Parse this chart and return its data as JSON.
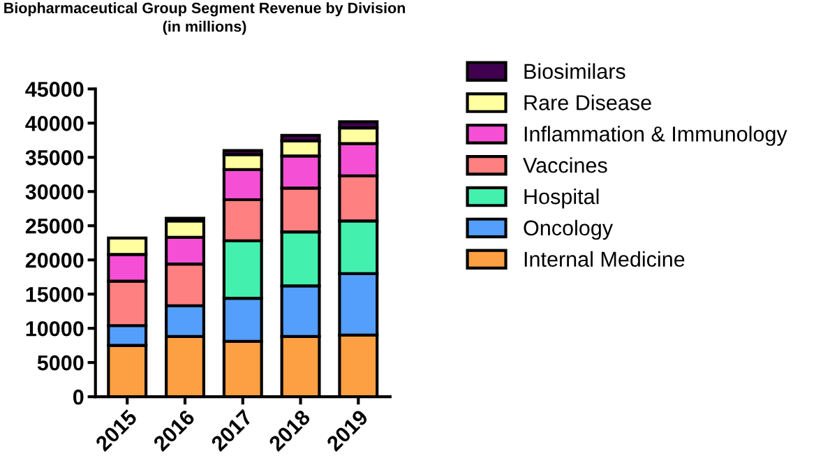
{
  "chart_data": {
    "type": "bar",
    "stacked": true,
    "title": "Biopharmaceutical Group Segment Revenue by Division\n(in millions)",
    "categories": [
      "2015",
      "2016",
      "2017",
      "2018",
      "2019"
    ],
    "series": [
      {
        "name": "Internal Medicine",
        "color": "#fda043",
        "values": [
          7500,
          8800,
          8100,
          8800,
          9000
        ]
      },
      {
        "name": "Oncology",
        "color": "#559ffc",
        "values": [
          2900,
          4500,
          6300,
          7400,
          9000
        ]
      },
      {
        "name": "Hospital",
        "color": "#43f0ae",
        "values": [
          null,
          null,
          8400,
          7900,
          7700
        ]
      },
      {
        "name": "Vaccines",
        "color": "#fe8080",
        "values": [
          6500,
          6100,
          6000,
          6400,
          6600
        ]
      },
      {
        "name": "Inflammation & Immunology",
        "color": "#f550d5",
        "values": [
          3900,
          3900,
          4400,
          4700,
          4700
        ]
      },
      {
        "name": "Rare Disease",
        "color": "#ffffa0",
        "values": [
          2400,
          2400,
          2200,
          2200,
          2300
        ]
      },
      {
        "name": "Biosimilars",
        "color": "#40004f",
        "values": [
          null,
          400,
          600,
          800,
          900
        ]
      }
    ],
    "ylim": [
      0,
      45000
    ],
    "yticks": [
      0,
      5000,
      10000,
      15000,
      20000,
      25000,
      30000,
      35000,
      40000,
      45000
    ],
    "legend": "top right",
    "grid": false
  }
}
